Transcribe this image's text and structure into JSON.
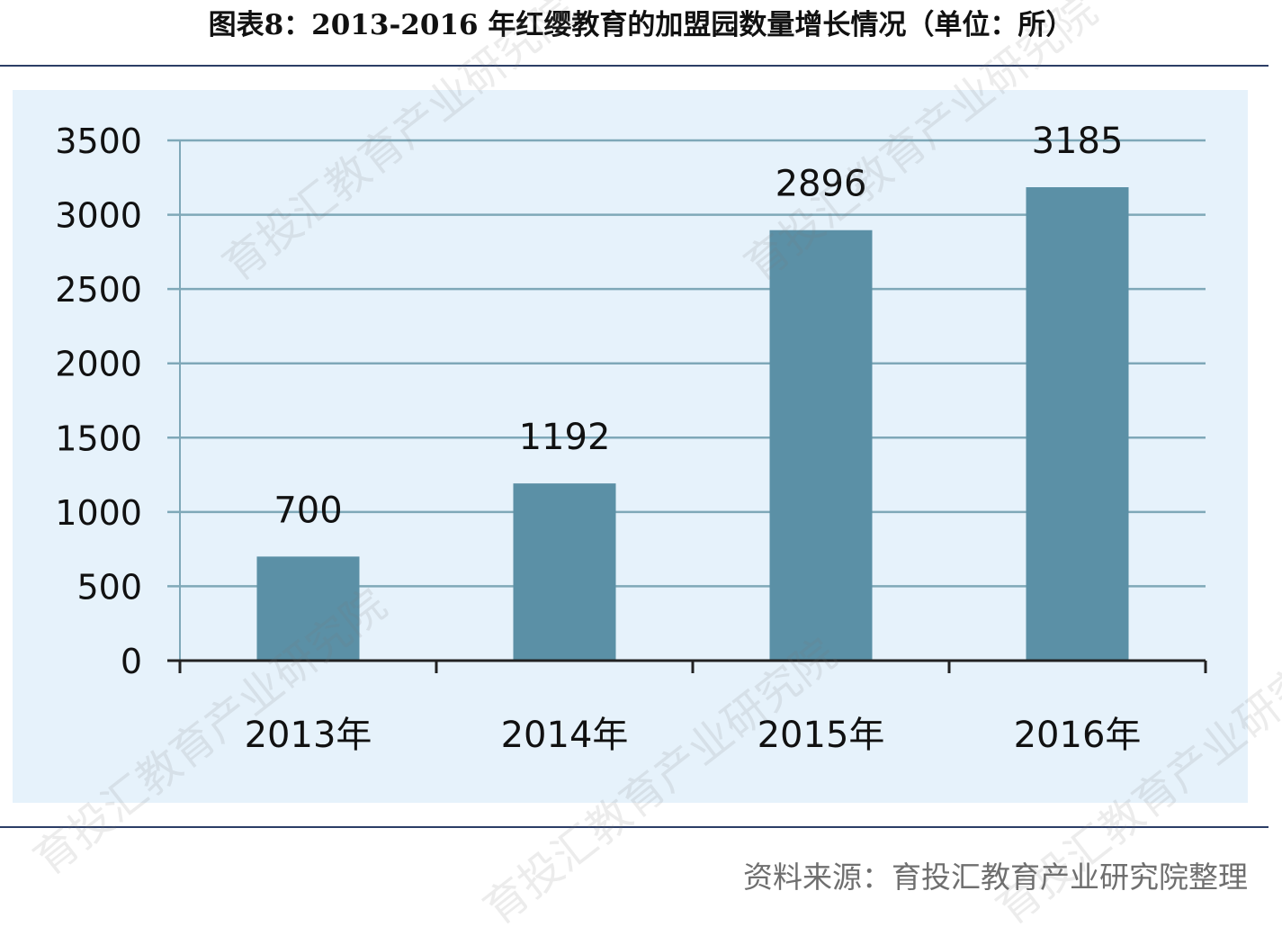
{
  "title": "图表8：2013-2016 年红缨教育的加盟园数量增长情况（单位：所）",
  "source": "资料来源：育投汇教育产业研究院整理",
  "watermark": "育投汇教育产业研究院",
  "colors": {
    "bar": "#5b90a6",
    "grid": "#7fa8b8",
    "axis": "#222222",
    "plot_background": "#e6f2fb",
    "rule": "#2c3e66"
  },
  "chart_data": {
    "type": "bar",
    "title": "图表8：2013-2016 年红缨教育的加盟园数量增长情况（单位：所）",
    "categories": [
      "2013年",
      "2014年",
      "2015年",
      "2016年"
    ],
    "values": [
      700,
      1192,
      2896,
      3185
    ],
    "data_labels": [
      "700",
      "1192",
      "2896",
      "3185"
    ],
    "y_ticks": [
      "0",
      "500",
      "1000",
      "1500",
      "2000",
      "2500",
      "3000",
      "3500"
    ],
    "ylim": [
      0,
      3500
    ],
    "xlabel": "",
    "ylabel": "",
    "grid": true,
    "legend": "none"
  }
}
